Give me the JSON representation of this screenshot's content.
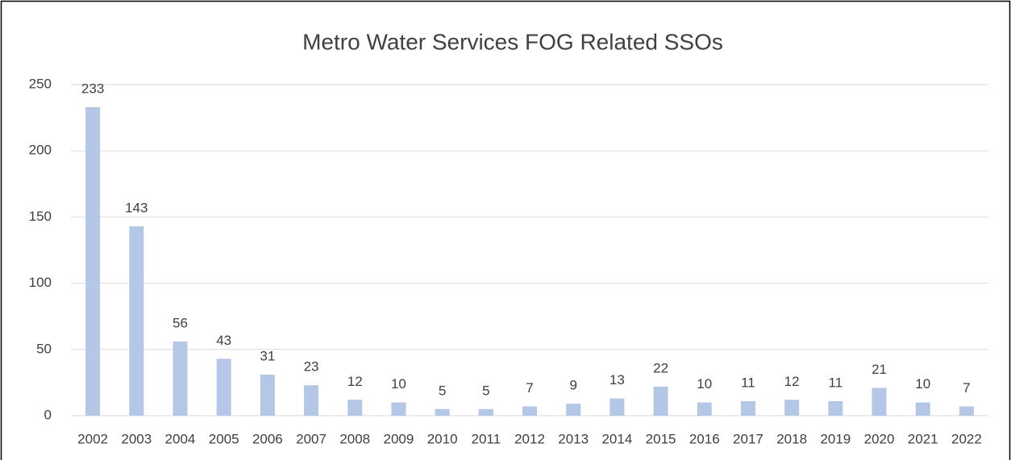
{
  "chart_data": {
    "type": "bar",
    "title": "Metro Water Services FOG Related SSOs",
    "categories": [
      "2002",
      "2003",
      "2004",
      "2005",
      "2006",
      "2007",
      "2008",
      "2009",
      "2010",
      "2011",
      "2012",
      "2013",
      "2014",
      "2015",
      "2016",
      "2017",
      "2018",
      "2019",
      "2020",
      "2021",
      "2022"
    ],
    "values": [
      233,
      143,
      56,
      43,
      31,
      23,
      12,
      10,
      5,
      5,
      7,
      9,
      13,
      22,
      10,
      11,
      12,
      11,
      21,
      10,
      7
    ],
    "color": "#b4c7e7",
    "ylim": [
      0,
      250
    ],
    "yticks": [
      0,
      50,
      100,
      150,
      200,
      250
    ],
    "grid": true
  }
}
